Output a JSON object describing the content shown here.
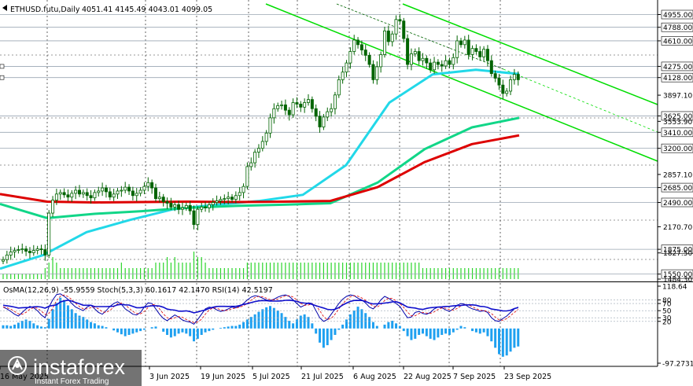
{
  "header": {
    "symbol_text": "ETHUSD.futu,Daily",
    "ohlc_text": "4051.41 4145.49 4043.01 4099.05"
  },
  "price_axis": {
    "ticks": [
      "4955.00",
      "4788.00",
      "4610.00",
      "4275.00",
      "4128.00",
      "3897.10",
      "3625.00",
      "3553.90",
      "3410.00",
      "3200.00",
      "2857.10",
      "2685.00",
      "2490.00",
      "2170.70",
      "1875.00",
      "1827.50",
      "1550.00",
      "1484.30"
    ],
    "boxed": [
      "4955.00",
      "4788.00",
      "4610.00",
      "4275.00",
      "4128.00",
      "3625.00",
      "3410.00",
      "3200.00",
      "2685.00",
      "2490.00",
      "1875.00",
      "1550.00"
    ],
    "hidden_under_label": "4099.05"
  },
  "indicator": {
    "label": "OsMA(12,26,9) -55.9559 Stoch(5,3,3) 60.1617 42.1470 RSI(14) 42.5197",
    "axis_ticks": [
      "118.64",
      "80",
      "70",
      "50",
      "30",
      "20",
      "-97.2731"
    ]
  },
  "time_axis": {
    "labels": [
      "16 May 2025",
      "3 Jun 2025",
      "19 Jun 2025",
      "5 Jul 2025",
      "21 Jul 2025",
      "6 Aug 2025",
      "22 Aug 2025",
      "7 Sep 2025",
      "23 Sep 2025"
    ]
  },
  "watermark": {
    "brand": "instaforex",
    "tagline": "Instant Forex Trading"
  },
  "colors": {
    "channel": "#00dd00",
    "ma_cyan": "#22d8e8",
    "ma_green": "#11d688",
    "ma_red": "#dd0000",
    "candle": "#006400",
    "volume": "#2bd62b",
    "osma": "#1ea0f0",
    "stoch_main": "#0000aa",
    "stoch_signal": "#dd0000",
    "rsi": "#6a0dad"
  },
  "chart_data": {
    "type": "candlestick",
    "symbol": "ETHUSD.futu",
    "timeframe": "Daily",
    "last_bar": {
      "open": 4051.41,
      "high": 4145.49,
      "low": 4043.01,
      "close": 4099.05
    },
    "y_axis_range": [
      1484.3,
      5100
    ],
    "x_axis_dates": [
      "16 May 2025",
      "3 Jun 2025",
      "19 Jun 2025",
      "5 Jul 2025",
      "21 Jul 2025",
      "6 Aug 2025",
      "22 Aug 2025",
      "7 Sep 2025",
      "23 Sep 2025"
    ],
    "horizontal_levels": [
      4955,
      4788,
      4610,
      4275,
      4128,
      3625,
      3410,
      3200,
      2685,
      2490,
      1875,
      1550
    ],
    "close_series": [
      1740,
      1800,
      1840,
      1860,
      1870,
      1880,
      1850,
      1830,
      1860,
      1880,
      1870,
      1800,
      2350,
      2520,
      2600,
      2620,
      2590,
      2560,
      2610,
      2650,
      2600,
      2620,
      2580,
      2550,
      2620,
      2640,
      2680,
      2630,
      2560,
      2600,
      2640,
      2650,
      2690,
      2640,
      2580,
      2610,
      2650,
      2700,
      2750,
      2680,
      2540,
      2560,
      2500,
      2480,
      2430,
      2460,
      2400,
      2420,
      2450,
      2380,
      2200,
      2400,
      2430,
      2420,
      2460,
      2490,
      2510,
      2530,
      2540,
      2560,
      2530,
      2580,
      2620,
      2700,
      2960,
      3010,
      3150,
      3200,
      3290,
      3400,
      3600,
      3720,
      3760,
      3770,
      3700,
      3640,
      3800,
      3780,
      3740,
      3800,
      3840,
      3720,
      3620,
      3480,
      3610,
      3680,
      3720,
      3900,
      4100,
      4200,
      4320,
      4470,
      4620,
      4560,
      4490,
      4420,
      4300,
      4100,
      4270,
      4430,
      4740,
      4600,
      4700,
      4890,
      4870,
      4640,
      4300,
      4440,
      4470,
      4350,
      4380,
      4320,
      4230,
      4330,
      4300,
      4280,
      4350,
      4300,
      4390,
      4610,
      4560,
      4620,
      4430,
      4510,
      4470,
      4400,
      4500,
      4350,
      4180,
      4120,
      4030,
      3920,
      3950,
      4100,
      4170,
      4100
    ],
    "moving_averages": [
      {
        "color": "cyan",
        "values": [
          1620,
          1800,
          2100,
          2260,
          2400,
          2460,
          2510,
          2590,
          2980,
          3800,
          4170,
          4230,
          4175
        ]
      },
      {
        "color": "green",
        "values": [
          2470,
          2285,
          2340,
          2375,
          2420,
          2445,
          2460,
          2480,
          2750,
          3190,
          3475,
          3600
        ]
      },
      {
        "color": "red",
        "values": [
          2600,
          2500,
          2490,
          2495,
          2500,
          2495,
          2500,
          2510,
          2690,
          3020,
          3255,
          3370
        ]
      }
    ],
    "volume": [
      1,
      1,
      1,
      1,
      1,
      1,
      1,
      1,
      1,
      1,
      1,
      2,
      3,
      4,
      3,
      2,
      2,
      2,
      2,
      2,
      2,
      2,
      2,
      2,
      2,
      2,
      2,
      2,
      2,
      2,
      2,
      3,
      2,
      2,
      2,
      2,
      2,
      2,
      2,
      2,
      3,
      3,
      3,
      4,
      3,
      4,
      3,
      3,
      3,
      3,
      5,
      4,
      4,
      3,
      2,
      2,
      2,
      2,
      2,
      2,
      2,
      2,
      2,
      2,
      3,
      3,
      3,
      3,
      3,
      3,
      3,
      3,
      3,
      3,
      3,
      3,
      3,
      3,
      3,
      3,
      3,
      3,
      3,
      3,
      3,
      3,
      3,
      3,
      3,
      3,
      3,
      3,
      3,
      3,
      3,
      3,
      3,
      3,
      3,
      3,
      3,
      3,
      3,
      3,
      3,
      3,
      3,
      3,
      3,
      3,
      2,
      2,
      2,
      2,
      2,
      2,
      2,
      2,
      2,
      2,
      2,
      2,
      2,
      2,
      2,
      2,
      2,
      2,
      2,
      2,
      2,
      2,
      2,
      2,
      2,
      2
    ],
    "osma_values": [
      5,
      5,
      4,
      6,
      9,
      12,
      14,
      12,
      8,
      5,
      3,
      2,
      15,
      30,
      40,
      48,
      44,
      36,
      30,
      24,
      20,
      18,
      14,
      10,
      8,
      5,
      4,
      2,
      0,
      -3,
      -6,
      -9,
      -12,
      -10,
      -8,
      -6,
      -4,
      -2,
      0,
      2,
      3,
      0,
      -5,
      -10,
      -14,
      -12,
      -8,
      -6,
      -8,
      -12,
      -20,
      -16,
      -10,
      -6,
      -4,
      -2,
      0,
      1,
      2,
      3,
      4,
      4,
      6,
      10,
      14,
      18,
      22,
      26,
      30,
      33,
      35,
      32,
      28,
      24,
      18,
      12,
      8,
      14,
      20,
      22,
      18,
      8,
      -8,
      -22,
      -30,
      -26,
      -18,
      -10,
      -2,
      6,
      14,
      22,
      28,
      34,
      30,
      24,
      18,
      10,
      4,
      0,
      6,
      10,
      12,
      8,
      4,
      -4,
      -12,
      -18,
      -16,
      -10,
      -8,
      -12,
      -16,
      -18,
      -14,
      -10,
      -8,
      -10,
      -6,
      -2,
      4,
      2,
      0,
      -4,
      -6,
      -8,
      -6,
      -12,
      -20,
      -30,
      -40,
      -44,
      -42,
      -36,
      -30,
      -28
    ],
    "stoch_values": [
      60,
      55,
      48,
      40,
      35,
      45,
      55,
      62,
      58,
      50,
      38,
      30,
      60,
      80,
      95,
      97,
      90,
      82,
      70,
      60,
      55,
      50,
      60,
      65,
      55,
      45,
      40,
      50,
      62,
      70,
      75,
      68,
      55,
      48,
      40,
      38,
      45,
      60,
      72,
      70,
      55,
      40,
      28,
      22,
      30,
      38,
      32,
      24,
      20,
      18,
      12,
      25,
      40,
      55,
      60,
      58,
      52,
      48,
      50,
      55,
      60,
      58,
      62,
      70,
      80,
      88,
      92,
      90,
      85,
      80,
      78,
      82,
      88,
      92,
      94,
      90,
      80,
      70,
      60,
      65,
      72,
      70,
      50,
      30,
      20,
      25,
      40,
      55,
      70,
      82,
      90,
      94,
      92,
      85,
      80,
      72,
      60,
      55,
      65,
      80,
      90,
      85,
      78,
      70,
      62,
      45,
      30,
      32,
      45,
      48,
      42,
      40,
      45,
      55,
      60,
      58,
      52,
      48,
      55,
      65,
      70,
      68,
      60,
      55,
      52,
      48,
      50,
      45,
      30,
      22,
      20,
      28,
      35,
      45,
      55,
      60
    ]
  }
}
